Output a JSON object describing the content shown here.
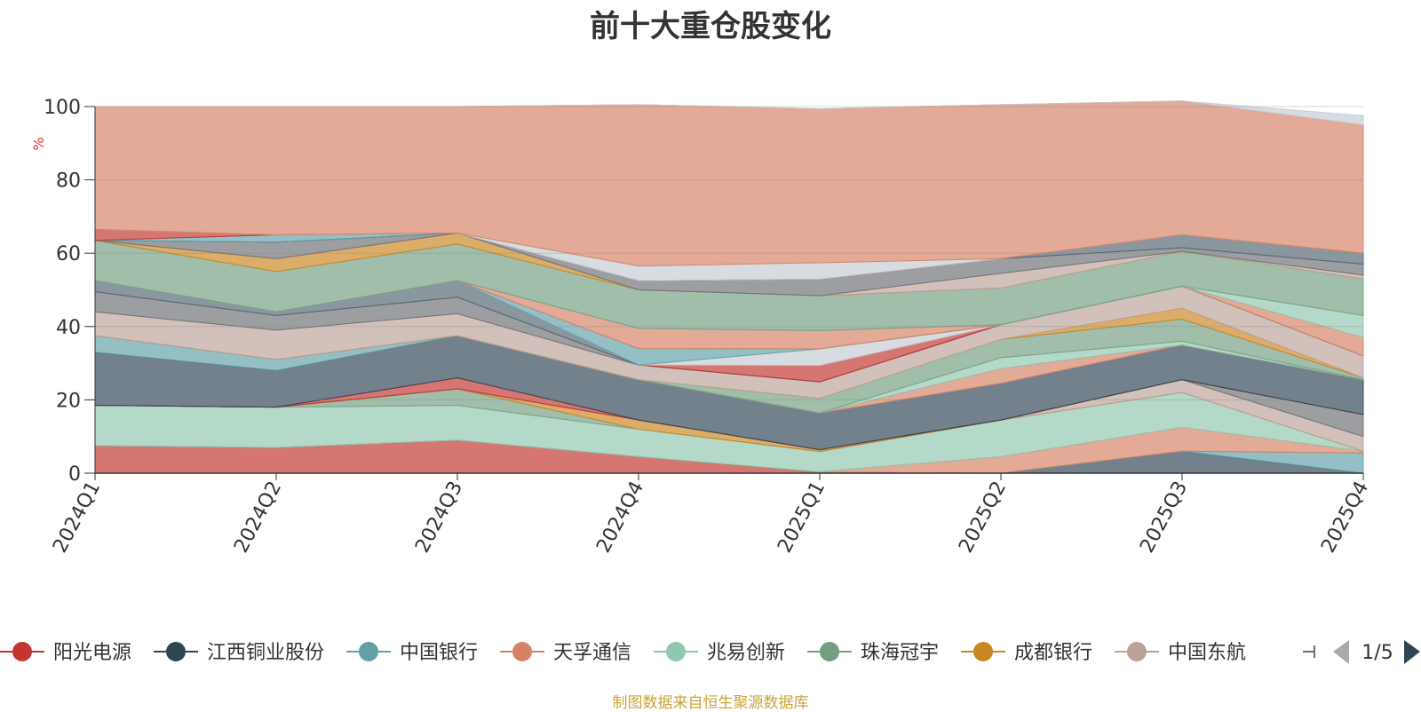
{
  "title": "前十大重仓股变化",
  "source_note": "制图数据来自恒生聚源数据库",
  "legend_page": "1/5",
  "chart_data": {
    "type": "area",
    "title": "前十大重仓股变化",
    "ylabel": "%",
    "ylim": [
      0,
      100
    ],
    "yticks": [
      0,
      20,
      40,
      60,
      80,
      100
    ],
    "grid": true,
    "legend_position": "bottom",
    "categories": [
      "2024Q1",
      "2024Q2",
      "2024Q3",
      "2024Q4",
      "2025Q1",
      "2025Q2",
      "2025Q3",
      "2025Q4"
    ],
    "series": [
      {
        "name": "阳光电源",
        "color": "#c23531",
        "values": [
          7.5,
          7,
          9,
          4.5,
          0.2,
          0,
          0,
          0
        ]
      },
      {
        "name": "江西铜业股份",
        "color": "#2f4554",
        "values": [
          0,
          0,
          0,
          0,
          0,
          0,
          6,
          0
        ]
      },
      {
        "name": "中国银行",
        "color": "#61a0a8",
        "values": [
          0,
          0,
          0,
          0,
          0,
          0,
          0,
          5.5
        ]
      },
      {
        "name": "天孚通信",
        "color": "#d48265",
        "values": [
          0,
          0,
          0,
          0,
          0.2,
          4.5,
          6.5,
          0.5
        ]
      },
      {
        "name": "兆易创新",
        "color": "#91c7ae",
        "values": [
          11,
          11,
          9.5,
          7.5,
          5.5,
          10,
          9.5,
          0
        ]
      },
      {
        "name": "珠海冠宇",
        "color": "#749f83",
        "values": [
          0,
          0,
          4.5,
          0,
          0,
          0,
          0,
          0
        ]
      },
      {
        "name": "成都银行",
        "color": "#ca8622",
        "values": [
          0,
          0,
          0,
          2.5,
          0.5,
          0,
          0,
          0
        ]
      },
      {
        "name": "中国东航",
        "color": "#bda29a",
        "values": [
          0,
          0,
          0,
          0,
          0,
          0,
          3.5,
          4
        ]
      },
      {
        "name": "",
        "color": "#6e7074",
        "values": [
          0,
          0,
          0,
          0,
          0,
          0,
          0,
          6
        ]
      },
      {
        "name": "",
        "color": "#546570",
        "values": [
          0,
          0,
          0,
          0,
          0,
          0,
          0,
          0
        ]
      },
      {
        "name": "",
        "color": "#c23531",
        "values": [
          0,
          0,
          3,
          0,
          0,
          0,
          0,
          0
        ]
      },
      {
        "name": "",
        "color": "#2f4554",
        "values": [
          14.5,
          10,
          11.5,
          11,
          10,
          10,
          9.5,
          9.5
        ]
      },
      {
        "name": "",
        "color": "#61a0a8",
        "values": [
          4.5,
          3,
          0,
          0,
          0,
          0,
          0,
          0
        ]
      },
      {
        "name": "",
        "color": "#d48265",
        "values": [
          0,
          0,
          0,
          0,
          0,
          4,
          0,
          0
        ]
      },
      {
        "name": "",
        "color": "#91c7ae",
        "values": [
          0,
          0,
          0,
          0,
          0,
          3,
          1,
          0
        ]
      },
      {
        "name": "",
        "color": "#749f83",
        "values": [
          0,
          0,
          0,
          0,
          4,
          5,
          6,
          0.5
        ]
      },
      {
        "name": "",
        "color": "#ca8622",
        "values": [
          0,
          0,
          0,
          0,
          0,
          0,
          3,
          0
        ]
      },
      {
        "name": "",
        "color": "#bda29a",
        "values": [
          6.5,
          8,
          6,
          4,
          4.5,
          4,
          6,
          6
        ]
      },
      {
        "name": "",
        "color": "#6e7074",
        "values": [
          5.5,
          4,
          4.5,
          0,
          0,
          0,
          0,
          0
        ]
      },
      {
        "name": "",
        "color": "#546570",
        "values": [
          3,
          1,
          4.5,
          0,
          0,
          0,
          0,
          0
        ]
      },
      {
        "name": "",
        "color": "#c23531",
        "values": [
          0,
          0,
          0,
          0,
          4.5,
          0,
          0,
          0
        ]
      },
      {
        "name": "",
        "color": "#c4ccd3",
        "values": [
          0,
          0,
          0,
          0,
          4.5,
          0,
          0,
          0
        ]
      },
      {
        "name": "",
        "color": "#61a0a8",
        "values": [
          0,
          0,
          0,
          4.5,
          0,
          0,
          0,
          0
        ]
      },
      {
        "name": "",
        "color": "#d48265",
        "values": [
          0,
          0,
          0,
          5.5,
          5,
          0,
          0,
          5
        ]
      },
      {
        "name": "",
        "color": "#91c7ae",
        "values": [
          0,
          0,
          0,
          0,
          0,
          0,
          0,
          6
        ]
      },
      {
        "name": "",
        "color": "#749f83",
        "values": [
          11,
          11,
          10,
          10.5,
          9.5,
          10,
          9.5,
          10
        ]
      },
      {
        "name": "",
        "color": "#ca8622",
        "values": [
          0,
          3.5,
          3,
          0,
          0,
          0,
          0,
          0
        ]
      },
      {
        "name": "",
        "color": "#bda29a",
        "values": [
          0,
          0,
          0,
          0,
          0,
          4,
          0,
          1
        ]
      },
      {
        "name": "",
        "color": "#6e7074",
        "values": [
          0,
          4.5,
          0,
          2.5,
          4.5,
          4,
          1,
          3
        ]
      },
      {
        "name": "",
        "color": "#546570",
        "values": [
          0,
          0,
          0,
          0,
          0,
          0,
          3.5,
          3
        ]
      },
      {
        "name": "",
        "color": "#61a0a8",
        "values": [
          0,
          2,
          0,
          0,
          0,
          0,
          0,
          0
        ]
      },
      {
        "name": "",
        "color": "#c23531",
        "values": [
          3,
          0,
          0,
          0,
          0,
          0,
          0,
          0
        ]
      },
      {
        "name": "",
        "color": "#c4ccd3",
        "values": [
          0,
          0,
          0,
          4,
          4.5,
          0,
          0,
          0
        ]
      },
      {
        "name": "",
        "color": "#d48265",
        "values": [
          33.5,
          35,
          34.5,
          44,
          42,
          42,
          36.5,
          35
        ]
      },
      {
        "name": "",
        "color": "#c4ccd3",
        "values": [
          0,
          0,
          0,
          0,
          0,
          0,
          0,
          2.5
        ]
      }
    ]
  }
}
